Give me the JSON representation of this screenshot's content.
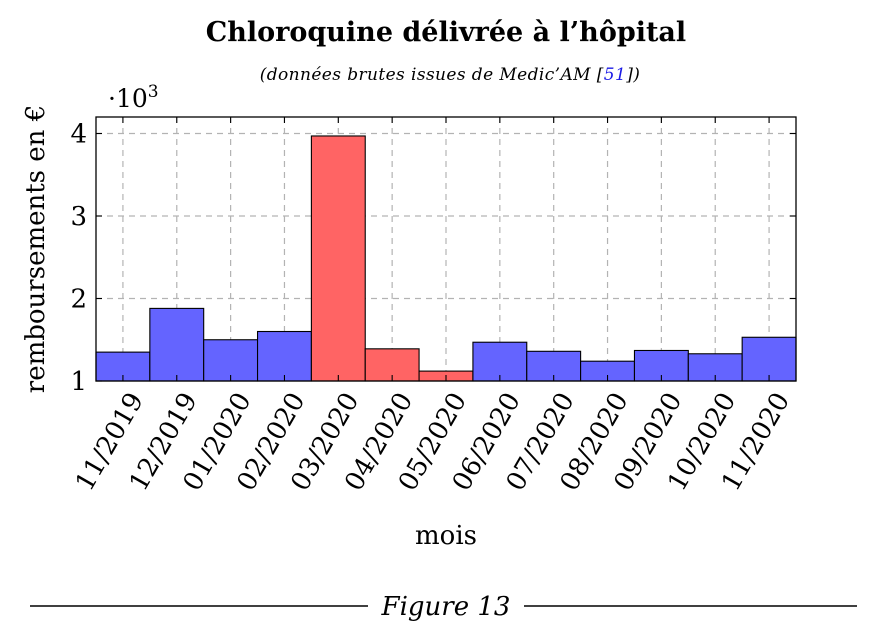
{
  "chart_data": {
    "type": "bar",
    "title": "Chloroquine délivrée à l’hôpital",
    "subtitle": {
      "prefix": "(données brutes issues de Medic’AM [",
      "ref": "51",
      "suffix": "])"
    },
    "xlabel": "mois",
    "ylabel": "remboursements en €",
    "y_multiplier": {
      "base": "·10",
      "exponent": "3"
    },
    "ylim": [
      1,
      4.2
    ],
    "yticks": [
      1,
      2,
      3,
      4
    ],
    "grid": true,
    "categories": [
      "11/2019",
      "12/2019",
      "01/2020",
      "02/2020",
      "03/2020",
      "04/2020",
      "05/2020",
      "06/2020",
      "07/2020",
      "08/2020",
      "09/2020",
      "10/2020",
      "11/2020"
    ],
    "values": [
      1.35,
      1.88,
      1.5,
      1.6,
      3.97,
      1.39,
      1.12,
      1.47,
      1.36,
      1.24,
      1.37,
      1.33,
      1.53
    ],
    "highlight": [
      "no",
      "no",
      "no",
      "no",
      "yes",
      "yes",
      "yes",
      "no",
      "no",
      "no",
      "no",
      "no",
      "no"
    ]
  },
  "colors": {
    "base_bar": "#6464ff",
    "highlight_bar": "#ff6464",
    "grid": "#b3b3b3",
    "reference_link": "#1a1ae6"
  },
  "caption": "Figure 13"
}
